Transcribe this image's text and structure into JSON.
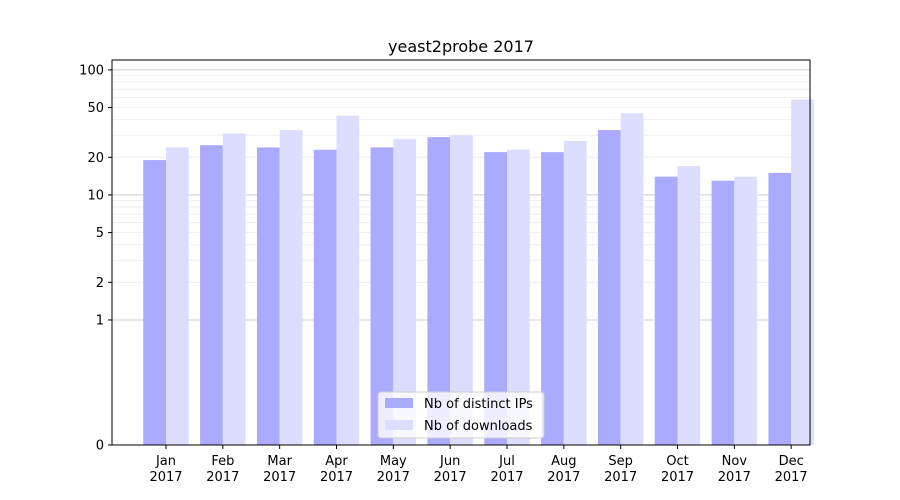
{
  "chart_data": {
    "type": "bar",
    "title": "yeast2probe 2017",
    "xlabel": "",
    "ylabel": "",
    "yscale": "symlog",
    "ylim": [
      0,
      120
    ],
    "yticks": [
      0,
      1,
      2,
      5,
      10,
      20,
      50,
      100
    ],
    "ytick_labels": [
      "0",
      "1",
      "2",
      "5",
      "10",
      "20",
      "50",
      "100"
    ],
    "grid": "horizontal",
    "legend_position": "bottom-center",
    "categories": [
      {
        "month": "Jan",
        "year": "2017"
      },
      {
        "month": "Feb",
        "year": "2017"
      },
      {
        "month": "Mar",
        "year": "2017"
      },
      {
        "month": "Apr",
        "year": "2017"
      },
      {
        "month": "May",
        "year": "2017"
      },
      {
        "month": "Jun",
        "year": "2017"
      },
      {
        "month": "Jul",
        "year": "2017"
      },
      {
        "month": "Aug",
        "year": "2017"
      },
      {
        "month": "Sep",
        "year": "2017"
      },
      {
        "month": "Oct",
        "year": "2017"
      },
      {
        "month": "Nov",
        "year": "2017"
      },
      {
        "month": "Dec",
        "year": "2017"
      }
    ],
    "series": [
      {
        "name": "Nb of distinct IPs",
        "color": "#aaaaff",
        "values": [
          19,
          25,
          24,
          23,
          24,
          29,
          22,
          22,
          33,
          14,
          13,
          15
        ]
      },
      {
        "name": "Nb of downloads",
        "color": "#ddddff",
        "values": [
          24,
          31,
          33,
          43,
          28,
          30,
          23,
          27,
          45,
          17,
          14,
          58
        ]
      }
    ]
  }
}
